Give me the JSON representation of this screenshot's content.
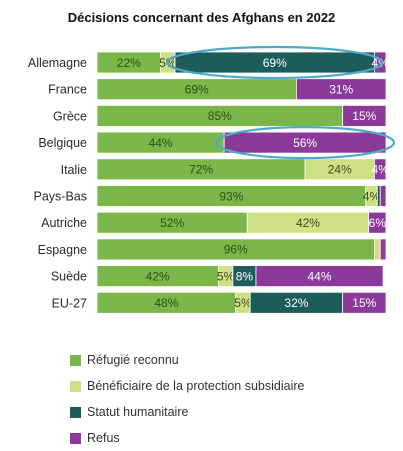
{
  "chart_data": {
    "type": "bar",
    "orientation": "horizontal",
    "stacked": true,
    "title": "Décisions concernant des Afghans en 2022",
    "categories": [
      "Allemagne",
      "France",
      "Grèce",
      "Belgique",
      "Italie",
      "Pays-Bas",
      "Autriche",
      "Espagne",
      "Suède",
      "EU-27"
    ],
    "series": [
      {
        "name": "Réfugié reconnu",
        "color": "#7ab648",
        "label_color": "#2f4f1a",
        "values": [
          22,
          69,
          85,
          44,
          72,
          93,
          52,
          96,
          42,
          48
        ],
        "labels": [
          "22%",
          "69%",
          "85%",
          "44%",
          "72%",
          "93%",
          "52%",
          "96%",
          "42%",
          "48%"
        ]
      },
      {
        "name": "Bénéficiaire de la protection subsidiaire",
        "color": "#cfdf85",
        "label_color": "#3d4a18",
        "values": [
          5,
          0,
          0,
          0,
          24,
          4,
          42,
          2,
          5,
          5
        ],
        "labels": [
          "5%",
          "",
          "",
          "",
          "24%",
          "4%",
          "42%",
          "",
          "5%",
          "5%"
        ]
      },
      {
        "name": "Statut humanitaire",
        "color": "#1c5d5a",
        "label_color": "#ffffff",
        "values": [
          69,
          0,
          0,
          0,
          0,
          1,
          0,
          0,
          8,
          32
        ],
        "labels": [
          "69%",
          "",
          "",
          "",
          "",
          "",
          "",
          "",
          "8%",
          "32%"
        ]
      },
      {
        "name": "Refus",
        "color": "#8b3a9a",
        "label_color": "#ffffff",
        "values": [
          4,
          31,
          15,
          56,
          4,
          2,
          6,
          2,
          44,
          15
        ],
        "labels": [
          "4%",
          "31%",
          "15%",
          "56%",
          "4%",
          "",
          "6%",
          "",
          "44%",
          "15%"
        ]
      }
    ],
    "xlim": [
      0,
      100
    ],
    "grid": false,
    "legend_position": "bottom-left",
    "highlight_color": "#4fa9c9",
    "highlights": [
      {
        "category": "Allemagne",
        "series": "Statut humanitaire"
      },
      {
        "category": "Belgique",
        "series": "Refus"
      }
    ]
  }
}
